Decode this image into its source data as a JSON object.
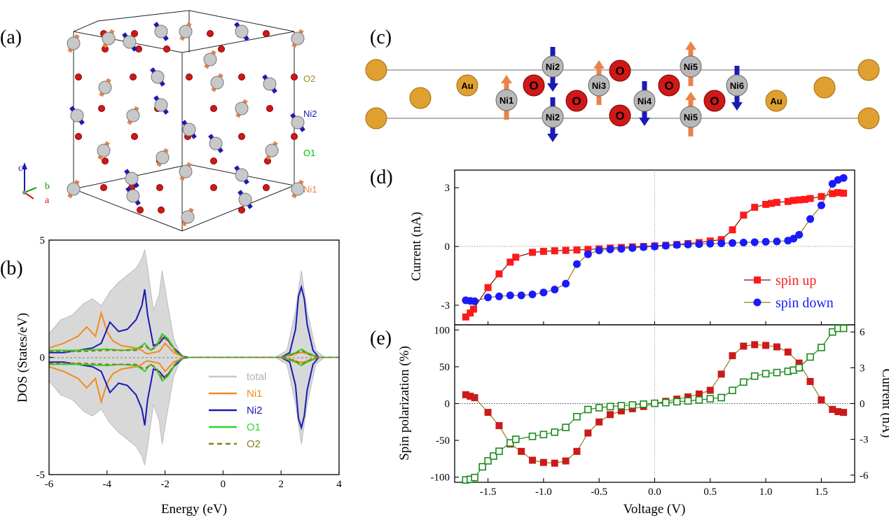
{
  "panels": {
    "a": "(a)",
    "b": "(b)",
    "c": "(c)",
    "d": "(d)",
    "e": "(e)"
  },
  "panel_a": {
    "labels": {
      "O2": "O2",
      "Ni2": "Ni2",
      "O1": "O1",
      "Ni1": "Ni1"
    },
    "axes": {
      "a": "a",
      "b": "b",
      "c": "c"
    },
    "colors": {
      "ni1": "#e8844a",
      "ni2": "#1a1ab4",
      "o1": "#00c000",
      "o2": "#a08a1a"
    }
  },
  "panel_c": {
    "atoms": [
      {
        "label": "Au",
        "kind": "au"
      },
      {
        "label": "Ni1",
        "kind": "ni",
        "spin": "up"
      },
      {
        "label": "O",
        "kind": "o"
      },
      {
        "label": "Ni2",
        "kind": "ni",
        "spin": "down"
      },
      {
        "label": "Ni2",
        "kind": "ni",
        "spin": "down"
      },
      {
        "label": "O",
        "kind": "o"
      },
      {
        "label": "Ni3",
        "kind": "ni",
        "spin": "up"
      },
      {
        "label": "O",
        "kind": "o"
      },
      {
        "label": "O",
        "kind": "o"
      },
      {
        "label": "Ni4",
        "kind": "ni",
        "spin": "down"
      },
      {
        "label": "O",
        "kind": "o"
      },
      {
        "label": "Ni5",
        "kind": "ni",
        "spin": "up"
      },
      {
        "label": "Ni5",
        "kind": "ni",
        "spin": "up"
      },
      {
        "label": "O",
        "kind": "o"
      },
      {
        "label": "Ni6",
        "kind": "ni",
        "spin": "down"
      },
      {
        "label": "Au",
        "kind": "au"
      }
    ]
  },
  "chart_data": [
    {
      "id": "b",
      "type": "line",
      "title": "",
      "xlabel": "Energy (eV)",
      "ylabel": "DOS (States/eV)",
      "xlim": [
        -6,
        4
      ],
      "ylim": [
        -5,
        5
      ],
      "xticks": [
        "-6",
        "-4",
        "-2",
        "0",
        "2",
        "4"
      ],
      "yticks": [
        "-5",
        "0",
        "5"
      ],
      "legend": [
        "total",
        "Ni1",
        "Ni2",
        "O1",
        "O2"
      ],
      "legend_position": "bottom-right",
      "series": [
        {
          "name": "total",
          "color": "#c8c8c8",
          "x": [
            -6,
            -5.6,
            -5.2,
            -4.8,
            -4.5,
            -4.2,
            -3.9,
            -3.6,
            -3.3,
            -3.0,
            -2.8,
            -2.7,
            -2.6,
            -2.4,
            -2.2,
            -2.1,
            -1.9,
            -1.7,
            -1.5,
            -1.3,
            1.8,
            2.2,
            2.5,
            2.7,
            2.9,
            3.2,
            3.5,
            4
          ],
          "y": [
            1.0,
            1.6,
            1.8,
            2.3,
            2.5,
            2.2,
            2.8,
            3.2,
            3.5,
            3.8,
            4.2,
            4.6,
            3.8,
            2.0,
            2.7,
            3.7,
            2.2,
            0.8,
            0.2,
            0.0,
            0.0,
            0.3,
            2.0,
            3.7,
            2.0,
            0.3,
            0.0,
            0.0
          ]
        },
        {
          "name": "Ni1",
          "color": "#f28c1e",
          "x": [
            -6,
            -5.5,
            -5.0,
            -4.7,
            -4.4,
            -4.2,
            -4.0,
            -3.8,
            -3.5,
            -3.0,
            -2.8,
            -2.7,
            -2.6,
            -2.2,
            -2.0,
            -1.7,
            -1.4,
            -1.2,
            2.0,
            2.4,
            2.6,
            2.7,
            2.8,
            3.0,
            3.3,
            4
          ],
          "y": [
            0.4,
            0.6,
            0.9,
            1.3,
            0.9,
            1.9,
            1.1,
            0.7,
            0.5,
            0.4,
            0.3,
            0.2,
            0.15,
            0.25,
            0.6,
            0.2,
            0.05,
            0.0,
            0.0,
            0.1,
            0.2,
            0.2,
            0.2,
            0.1,
            0.0,
            0.0
          ]
        },
        {
          "name": "Ni2",
          "color": "#1a1ab4",
          "x": [
            -6,
            -5.5,
            -5.0,
            -4.5,
            -4.2,
            -3.9,
            -3.6,
            -3.3,
            -3.0,
            -2.8,
            -2.7,
            -2.6,
            -2.4,
            -2.2,
            -2.0,
            -1.7,
            -1.4,
            -1.2,
            2.0,
            2.3,
            2.5,
            2.6,
            2.7,
            2.8,
            2.9,
            3.1,
            3.3,
            4
          ],
          "y": [
            0.2,
            0.2,
            0.3,
            0.4,
            0.6,
            1.5,
            1.1,
            1.2,
            1.6,
            2.2,
            2.9,
            1.8,
            0.5,
            0.6,
            0.9,
            0.4,
            0.05,
            0.0,
            0.0,
            0.2,
            1.2,
            2.6,
            3.0,
            2.5,
            1.4,
            0.3,
            0.0,
            0.0
          ]
        },
        {
          "name": "O1",
          "color": "#2ed42e",
          "x": [
            -6,
            -5.0,
            -4.0,
            -3.5,
            -3.0,
            -2.8,
            -2.7,
            -2.5,
            -2.3,
            -2.1,
            -1.9,
            -1.6,
            -1.3,
            2.0,
            2.5,
            2.7,
            2.9,
            3.3,
            4
          ],
          "y": [
            0.3,
            0.3,
            0.35,
            0.3,
            0.35,
            0.5,
            0.6,
            0.3,
            0.5,
            1.0,
            0.8,
            0.2,
            0.0,
            0.0,
            0.2,
            0.35,
            0.2,
            0.0,
            0.0
          ]
        },
        {
          "name": "O2",
          "color": "#8b7d1a",
          "x": [
            -6,
            -5.0,
            -4.0,
            -3.5,
            -3.0,
            -2.8,
            -2.7,
            -2.5,
            -2.3,
            -2.1,
            -1.9,
            -1.6,
            -1.3,
            2.0,
            2.5,
            2.7,
            2.9,
            3.3,
            4
          ],
          "y": [
            0.25,
            0.25,
            0.3,
            0.3,
            0.3,
            0.45,
            0.5,
            0.3,
            0.45,
            0.9,
            0.7,
            0.2,
            0.0,
            0.0,
            0.15,
            0.3,
            0.15,
            0.0,
            0.0
          ]
        }
      ]
    },
    {
      "id": "d",
      "type": "line",
      "xlabel": "",
      "ylabel": "Current (nA)",
      "xlim": [
        -1.8,
        1.8
      ],
      "ylim": [
        -4.0,
        3.9
      ],
      "yticks": [
        "-3",
        "0",
        "3"
      ],
      "legend_position": "bottom-right",
      "series": [
        {
          "name": "spin up",
          "color": "#ff1a1a",
          "line_color": "#6a1010",
          "marker": "square",
          "x": [
            -1.7,
            -1.66,
            -1.63,
            -1.5,
            -1.4,
            -1.3,
            -1.25,
            -1.1,
            -1.0,
            -0.9,
            -0.8,
            -0.7,
            -0.6,
            -0.5,
            -0.4,
            -0.3,
            -0.2,
            -0.1,
            0.0,
            0.1,
            0.2,
            0.3,
            0.4,
            0.5,
            0.6,
            0.7,
            0.8,
            0.9,
            1.0,
            1.05,
            1.1,
            1.2,
            1.25,
            1.3,
            1.35,
            1.4,
            1.5,
            1.6,
            1.65,
            1.7
          ],
          "y": [
            -3.6,
            -3.4,
            -3.2,
            -2.1,
            -1.4,
            -0.8,
            -0.55,
            -0.3,
            -0.25,
            -0.22,
            -0.2,
            -0.18,
            -0.15,
            -0.12,
            -0.08,
            -0.05,
            -0.02,
            0.0,
            0.03,
            0.06,
            0.1,
            0.15,
            0.2,
            0.28,
            0.35,
            0.85,
            1.6,
            2.0,
            2.15,
            2.2,
            2.25,
            2.3,
            2.35,
            2.38,
            2.4,
            2.45,
            2.55,
            2.7,
            2.75,
            2.72
          ]
        },
        {
          "name": "spin down",
          "color": "#1a1aff",
          "line_color": "#8b7d1a",
          "marker": "circle",
          "x": [
            -1.7,
            -1.66,
            -1.62,
            -1.5,
            -1.4,
            -1.3,
            -1.2,
            -1.1,
            -1.0,
            -0.9,
            -0.8,
            -0.7,
            -0.6,
            -0.5,
            -0.4,
            -0.3,
            -0.2,
            -0.1,
            0.0,
            0.1,
            0.2,
            0.3,
            0.4,
            0.5,
            0.6,
            0.7,
            0.8,
            0.9,
            1.0,
            1.1,
            1.2,
            1.25,
            1.3,
            1.4,
            1.5,
            1.6,
            1.65,
            1.7
          ],
          "y": [
            -2.75,
            -2.78,
            -2.8,
            -2.6,
            -2.55,
            -2.5,
            -2.5,
            -2.45,
            -2.35,
            -2.2,
            -1.9,
            -0.9,
            -0.4,
            -0.2,
            -0.15,
            -0.12,
            -0.08,
            -0.03,
            0.0,
            0.04,
            0.08,
            0.1,
            0.12,
            0.14,
            0.16,
            0.18,
            0.2,
            0.22,
            0.24,
            0.26,
            0.3,
            0.4,
            0.6,
            1.4,
            2.1,
            3.2,
            3.4,
            3.5
          ]
        }
      ]
    },
    {
      "id": "e",
      "type": "line",
      "xlabel": "Voltage (V)",
      "ylabel": "Spin polarization (%)",
      "ylabel_right": "Current (nA)",
      "xlim": [
        -1.8,
        1.8
      ],
      "xticks": [
        "-1.5",
        "-1.0",
        "-0.5",
        "0.0",
        "0.5",
        "1.0",
        "1.5"
      ],
      "ylim": [
        -107,
        107
      ],
      "yticks": [
        "-100",
        "-50",
        "0",
        "50",
        "100"
      ],
      "ylim_right": [
        -6.6,
        6.6
      ],
      "yticks_right": [
        "-6",
        "-3",
        "0",
        "3",
        "6"
      ],
      "series": [
        {
          "name": "Spin polarization",
          "axis": "left",
          "color": "#cc1a1a",
          "line_color": "#8b7d1a",
          "marker": "square-filled",
          "x": [
            -1.7,
            -1.66,
            -1.62,
            -1.5,
            -1.4,
            -1.3,
            -1.2,
            -1.1,
            -1.0,
            -0.9,
            -0.8,
            -0.7,
            -0.6,
            -0.5,
            -0.4,
            -0.3,
            -0.2,
            -0.1,
            0.0,
            0.1,
            0.2,
            0.3,
            0.4,
            0.5,
            0.6,
            0.7,
            0.8,
            0.9,
            1.0,
            1.1,
            1.2,
            1.3,
            1.4,
            1.5,
            1.6,
            1.65,
            1.7
          ],
          "y": [
            12,
            10,
            8,
            -12,
            -30,
            -55,
            -65,
            -77,
            -80,
            -81,
            -78,
            -65,
            -40,
            -25,
            -15,
            -10,
            -7,
            -4,
            0,
            3,
            6,
            9,
            13,
            18,
            40,
            65,
            78,
            80,
            79,
            77,
            70,
            55,
            30,
            5,
            -8,
            -11,
            -12
          ]
        },
        {
          "name": "Current",
          "axis": "right",
          "color": "#1a8a1a",
          "line_color": "#1a8a1a",
          "marker": "square-open",
          "x": [
            -1.7,
            -1.66,
            -1.62,
            -1.55,
            -1.5,
            -1.45,
            -1.4,
            -1.3,
            -1.25,
            -1.1,
            -1.0,
            -0.9,
            -0.8,
            -0.7,
            -0.6,
            -0.5,
            -0.4,
            -0.3,
            -0.2,
            -0.1,
            0.0,
            0.1,
            0.2,
            0.3,
            0.4,
            0.5,
            0.6,
            0.7,
            0.8,
            0.9,
            1.0,
            1.1,
            1.2,
            1.25,
            1.3,
            1.4,
            1.5,
            1.6,
            1.65,
            1.7
          ],
          "y": [
            -6.4,
            -6.35,
            -6.2,
            -5.3,
            -4.8,
            -4.4,
            -4.0,
            -3.3,
            -3.0,
            -2.75,
            -2.6,
            -2.4,
            -2.0,
            -1.1,
            -0.5,
            -0.35,
            -0.25,
            -0.18,
            -0.12,
            -0.05,
            0.02,
            0.08,
            0.15,
            0.22,
            0.3,
            0.4,
            0.5,
            1.1,
            1.8,
            2.3,
            2.5,
            2.6,
            2.7,
            2.8,
            3.0,
            3.9,
            4.7,
            6.0,
            6.3,
            6.3
          ]
        }
      ]
    }
  ]
}
